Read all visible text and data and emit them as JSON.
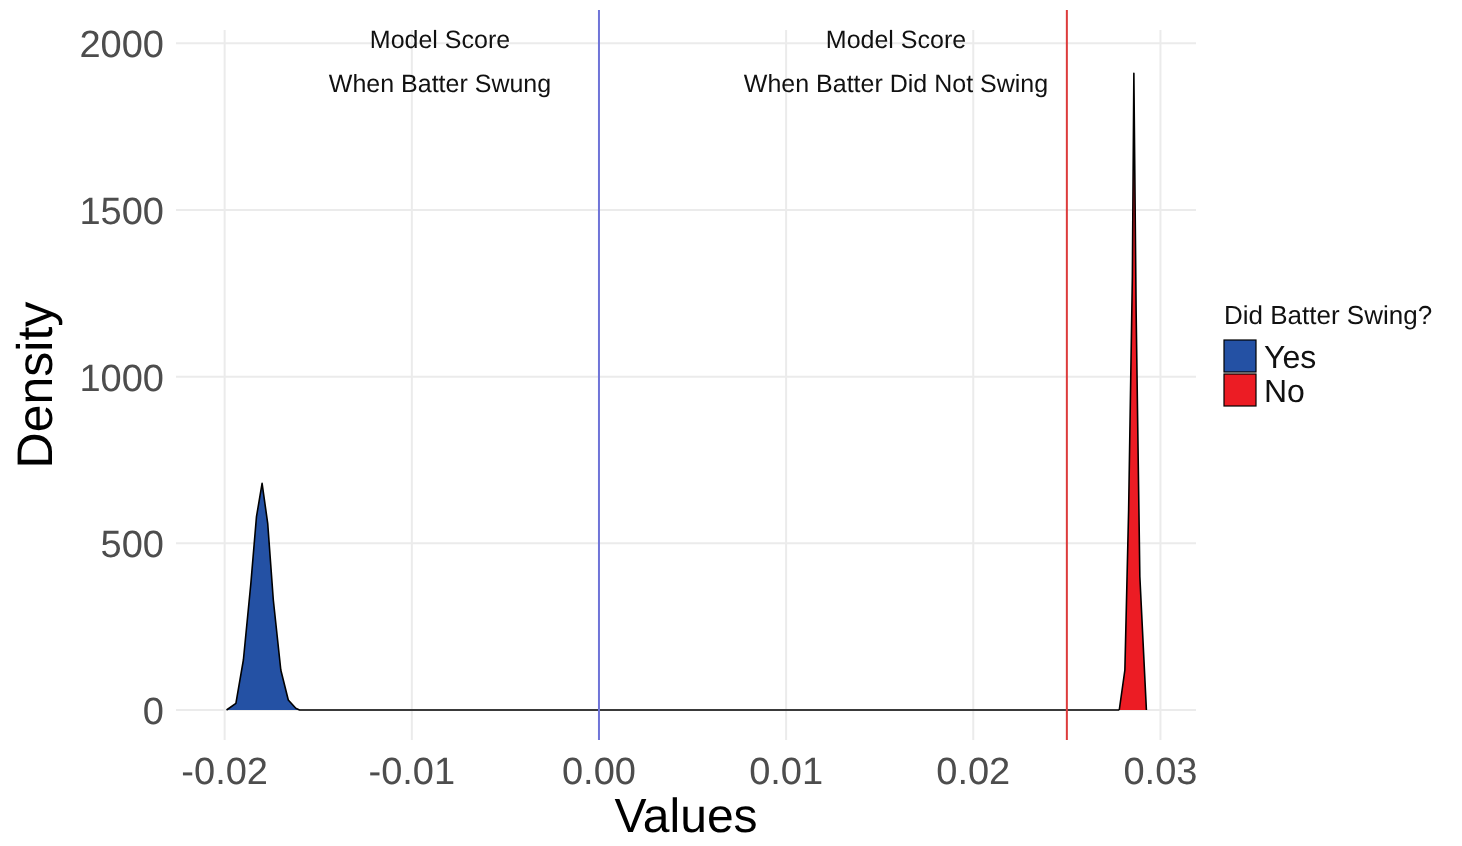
{
  "chart_data": {
    "type": "area",
    "xlabel": "Values",
    "ylabel": "Density",
    "legend_title": "Did Batter Swing?",
    "legend": "right",
    "grid": true,
    "xlim": [
      -0.0226,
      0.0319
    ],
    "ylim": [
      -90,
      2040
    ],
    "xticks": [
      {
        "value": -0.02,
        "label": "-0.02"
      },
      {
        "value": -0.01,
        "label": "-0.01"
      },
      {
        "value": 0,
        "label": "0.00"
      },
      {
        "value": 0.01,
        "label": "0.01"
      },
      {
        "value": 0.02,
        "label": "0.02"
      },
      {
        "value": 0.03,
        "label": "0.03"
      }
    ],
    "yticks": [
      0,
      500,
      1000,
      1500,
      2000
    ],
    "series": [
      {
        "name": "Yes",
        "color": "#2451a4",
        "x": [
          -0.0199,
          -0.0194,
          -0.019,
          -0.0186,
          -0.0183,
          -0.018,
          -0.0177,
          -0.0174,
          -0.017,
          -0.0166,
          -0.0162,
          -0.016,
          0.0278
        ],
        "values": [
          0,
          20,
          150,
          380,
          580,
          680,
          560,
          330,
          120,
          30,
          5,
          0,
          0
        ]
      },
      {
        "name": "No",
        "color": "#ec1c24",
        "x": [
          0.0278,
          0.0281,
          0.0283,
          0.0285,
          0.02858,
          0.0287,
          0.0289,
          0.02925
        ],
        "values": [
          0,
          120,
          600,
          1300,
          1910,
          1200,
          400,
          0
        ]
      }
    ],
    "ref_lines": [
      {
        "axis": "x",
        "value": 0,
        "color": "#6f74d8"
      },
      {
        "axis": "x",
        "value": 0.025,
        "color": "#dd3b3b"
      }
    ],
    "annotations": [
      "Model Score\nWhen Batter Swung",
      "Model Score\nWhen Batter Did Not Swing"
    ]
  }
}
